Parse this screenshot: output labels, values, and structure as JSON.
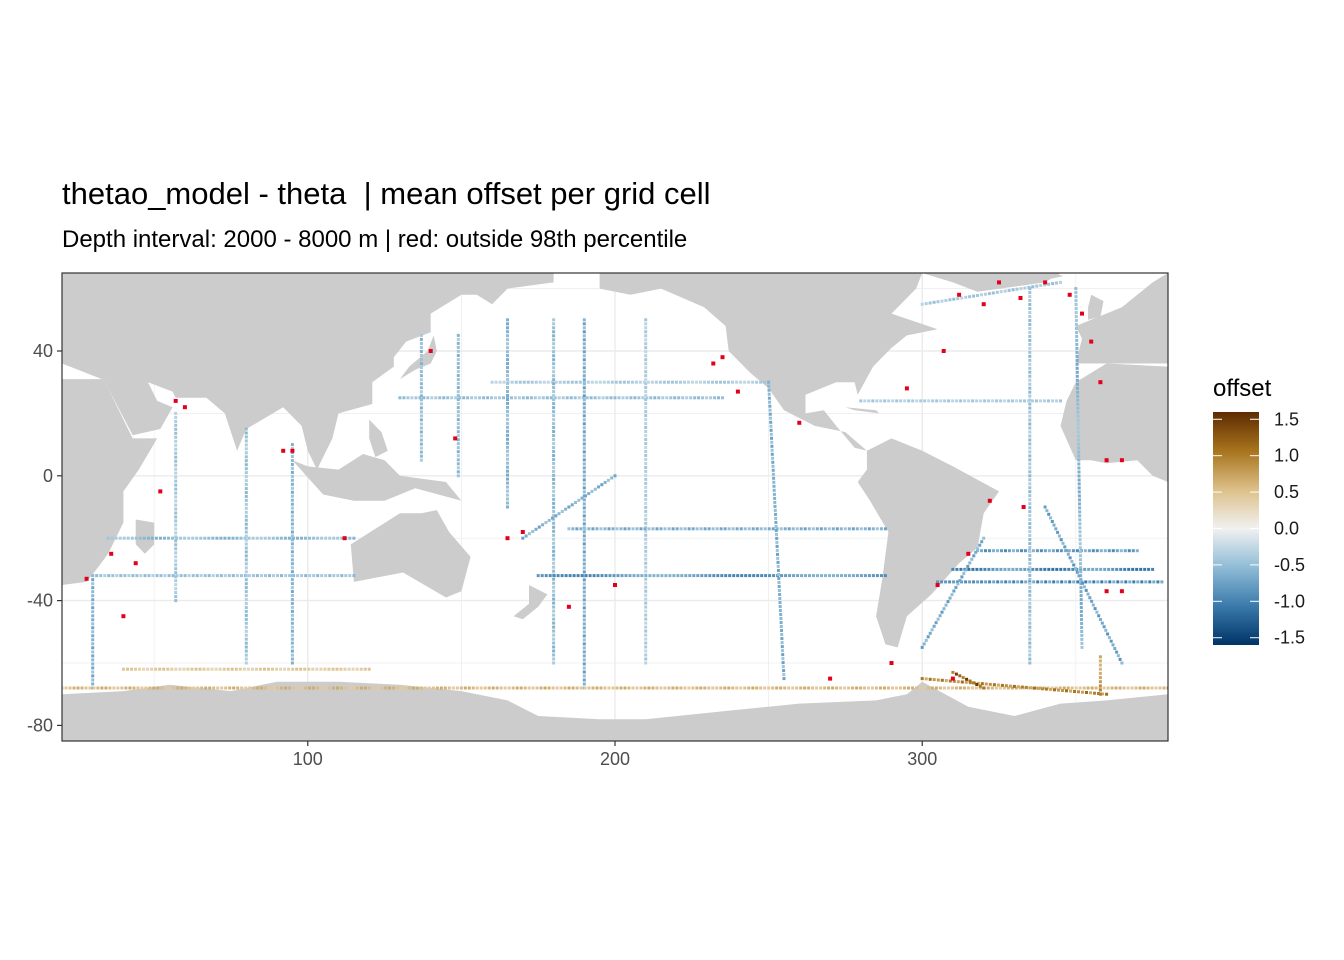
{
  "chart_data": {
    "type": "heatmap",
    "title": "thetao_model - theta  | mean offset per grid cell",
    "subtitle": "Depth interval: 2000 - 8000 m | red: outside 98th percentile",
    "xlabel": "",
    "ylabel": "",
    "xlim": [
      20,
      380
    ],
    "ylim": [
      -85,
      65
    ],
    "x_ticks": [
      100,
      200,
      300
    ],
    "y_ticks": [
      -80,
      -40,
      0,
      40
    ],
    "x_tick_labels": [
      "100",
      "200",
      "300"
    ],
    "y_tick_labels": [
      "-80",
      "-40",
      "0",
      "40"
    ],
    "grid": true,
    "background": {
      "land": "#cccccc",
      "ocean": "#ffffff"
    },
    "legend": {
      "title": "offset",
      "position": "right",
      "limits": [
        -1.6,
        1.6
      ],
      "breaks": [
        1.5,
        1.0,
        0.5,
        0.0,
        -0.5,
        -1.0,
        -1.5
      ],
      "break_labels": [
        "1.5",
        "1.0",
        "0.5",
        "0.0",
        "-0.5",
        "-1.0",
        "-1.5"
      ],
      "palette": [
        "#003366",
        "#3a7aab",
        "#8fbcd6",
        "#f1f1f1",
        "#dcc089",
        "#a8741d",
        "#5e2b02"
      ]
    },
    "outlier_color": "#e3001b",
    "tracks": [
      {
        "name": "pac-lat-25",
        "x0": 130,
        "y0": 25,
        "x1": 235,
        "y1": 25,
        "value": -0.45
      },
      {
        "name": "pac-lat-30",
        "x0": 160,
        "y0": 30,
        "x1": 250,
        "y1": 30,
        "value": -0.35
      },
      {
        "name": "pac-137E",
        "x0": 137,
        "y0": 45,
        "x1": 137,
        "y1": 5,
        "value": -0.5
      },
      {
        "name": "pac-149E",
        "x0": 149,
        "y0": 45,
        "x1": 149,
        "y1": 0,
        "value": -0.5
      },
      {
        "name": "pac-165E",
        "x0": 165,
        "y0": 50,
        "x1": 165,
        "y1": -10,
        "value": -0.55
      },
      {
        "name": "pac-180",
        "x0": 180,
        "y0": 50,
        "x1": 180,
        "y1": -60,
        "value": -0.5
      },
      {
        "name": "pac-190",
        "x0": 190,
        "y0": 50,
        "x1": 190,
        "y1": -68,
        "value": -0.65
      },
      {
        "name": "pac-210",
        "x0": 210,
        "y0": 50,
        "x1": 210,
        "y1": -60,
        "value": -0.35
      },
      {
        "name": "pac-lat-32S",
        "x0": 175,
        "y0": -32,
        "x1": 288,
        "y1": -32,
        "value": -0.8
      },
      {
        "name": "pac-lat-17S",
        "x0": 185,
        "y0": -17,
        "x1": 288,
        "y1": -17,
        "value": -0.6
      },
      {
        "name": "pac-250",
        "x0": 250,
        "y0": 30,
        "x1": 255,
        "y1": -65,
        "value": -0.6
      },
      {
        "name": "pac-150W-diag",
        "x0": 170,
        "y0": -20,
        "x1": 200,
        "y1": 0,
        "value": -0.6
      },
      {
        "name": "ind-lat-20S",
        "x0": 35,
        "y0": -20,
        "x1": 115,
        "y1": -20,
        "value": -0.5
      },
      {
        "name": "ind-lat-32S",
        "x0": 30,
        "y0": -32,
        "x1": 115,
        "y1": -32,
        "value": -0.45
      },
      {
        "name": "ind-95E",
        "x0": 95,
        "y0": 10,
        "x1": 95,
        "y1": -60,
        "value": -0.55
      },
      {
        "name": "ind-80E",
        "x0": 80,
        "y0": 15,
        "x1": 80,
        "y1": -60,
        "value": -0.45
      },
      {
        "name": "ind-57E",
        "x0": 57,
        "y0": 20,
        "x1": 57,
        "y1": -40,
        "value": -0.4
      },
      {
        "name": "ind-30E",
        "x0": 30,
        "y0": -32,
        "x1": 30,
        "y1": -68,
        "value": -0.6
      },
      {
        "name": "atl-lat-24N",
        "x0": 280,
        "y0": 24,
        "x1": 345,
        "y1": 24,
        "value": -0.35
      },
      {
        "name": "atl-lat-30S",
        "x0": 310,
        "y0": -30,
        "x1": 375,
        "y1": -30,
        "value": -0.9
      },
      {
        "name": "atl-lat-24S",
        "x0": 318,
        "y0": -24,
        "x1": 370,
        "y1": -24,
        "value": -0.75
      },
      {
        "name": "atl-lat-34S",
        "x0": 305,
        "y0": -34,
        "x1": 378,
        "y1": -34,
        "value": -0.85
      },
      {
        "name": "atl-335",
        "x0": 335,
        "y0": 60,
        "x1": 335,
        "y1": -60,
        "value": -0.45
      },
      {
        "name": "atl-350",
        "x0": 350,
        "y0": 60,
        "x1": 352,
        "y1": -55,
        "value": -0.55
      },
      {
        "name": "atl-diag-sw",
        "x0": 320,
        "y0": -20,
        "x1": 300,
        "y1": -55,
        "value": -0.65
      },
      {
        "name": "atl-diag-se",
        "x0": 340,
        "y0": -10,
        "x1": 365,
        "y1": -60,
        "value": -0.7
      },
      {
        "name": "so-lat-68S",
        "x0": 20,
        "y0": -68,
        "x1": 380,
        "y1": -68,
        "value": 0.55
      },
      {
        "name": "so-lat-62S",
        "x0": 40,
        "y0": -62,
        "x1": 120,
        "y1": -62,
        "value": 0.4
      },
      {
        "name": "so-weddell",
        "x0": 300,
        "y0": -65,
        "x1": 360,
        "y1": -70,
        "value": 0.9
      },
      {
        "name": "so-weddell-2",
        "x0": 310,
        "y0": -63,
        "x1": 320,
        "y1": -68,
        "value": 1.2
      },
      {
        "name": "so-0E",
        "x0": 358,
        "y0": -58,
        "x1": 358,
        "y1": -70,
        "value": 0.8
      },
      {
        "name": "natl-60N",
        "x0": 300,
        "y0": 55,
        "x1": 345,
        "y1": 62,
        "value": -0.4
      }
    ]
  }
}
